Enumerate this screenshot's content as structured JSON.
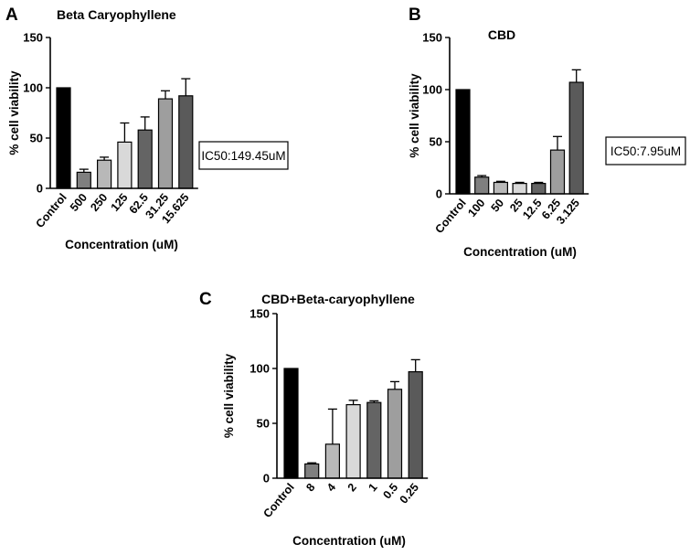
{
  "chart_data": [
    {
      "panel": "A",
      "type": "bar",
      "title": "Beta Caryophyllene",
      "xlabel": "Concentration (uM)",
      "ylabel": "% cell viability",
      "ylim": [
        0,
        150
      ],
      "yticks": [
        0,
        50,
        100,
        150
      ],
      "categories": [
        "Control",
        "500",
        "250",
        "125",
        "62.5",
        "31.25",
        "15.625"
      ],
      "values": [
        100,
        16,
        28,
        46,
        58,
        89,
        92
      ],
      "errors": [
        0,
        3,
        3,
        19,
        13,
        8,
        17
      ],
      "colors": [
        "#000000",
        "#7f7f7f",
        "#b8b8b8",
        "#d9d9d9",
        "#646464",
        "#9e9e9e",
        "#5a5a5a"
      ],
      "annotation": "IC50:149.45uM",
      "grid": false,
      "legend": "none"
    },
    {
      "panel": "B",
      "type": "bar",
      "title": "CBD",
      "xlabel": "Concentration (uM)",
      "ylabel": "% cell viability",
      "ylim": [
        0,
        150
      ],
      "yticks": [
        0,
        50,
        100,
        150
      ],
      "categories": [
        "Control",
        "100",
        "50",
        "25",
        "12.5",
        "6.25",
        "3.125"
      ],
      "values": [
        100,
        16,
        11,
        10,
        10,
        42,
        107
      ],
      "errors": [
        0,
        1.5,
        1,
        1,
        1,
        13,
        12
      ],
      "colors": [
        "#000000",
        "#7f7f7f",
        "#b8b8b8",
        "#d9d9d9",
        "#646464",
        "#9e9e9e",
        "#5a5a5a"
      ],
      "annotation": "IC50:7.95uM",
      "grid": false,
      "legend": "none"
    },
    {
      "panel": "C",
      "type": "bar",
      "title": "CBD+Beta-caryophyllene",
      "xlabel": "Concentration (uM)",
      "ylabel": "% cell viability",
      "ylim": [
        0,
        150
      ],
      "yticks": [
        0,
        50,
        100,
        150
      ],
      "categories": [
        "Control",
        "8",
        "4",
        "2",
        "1",
        "0.5",
        "0.25"
      ],
      "values": [
        100,
        13,
        31,
        67,
        69,
        81,
        97
      ],
      "errors": [
        0,
        1,
        32,
        4,
        1.5,
        7,
        11
      ],
      "colors": [
        "#000000",
        "#7f7f7f",
        "#b8b8b8",
        "#d9d9d9",
        "#646464",
        "#9e9e9e",
        "#5a5a5a"
      ],
      "annotation": "",
      "grid": false,
      "legend": "none"
    }
  ]
}
